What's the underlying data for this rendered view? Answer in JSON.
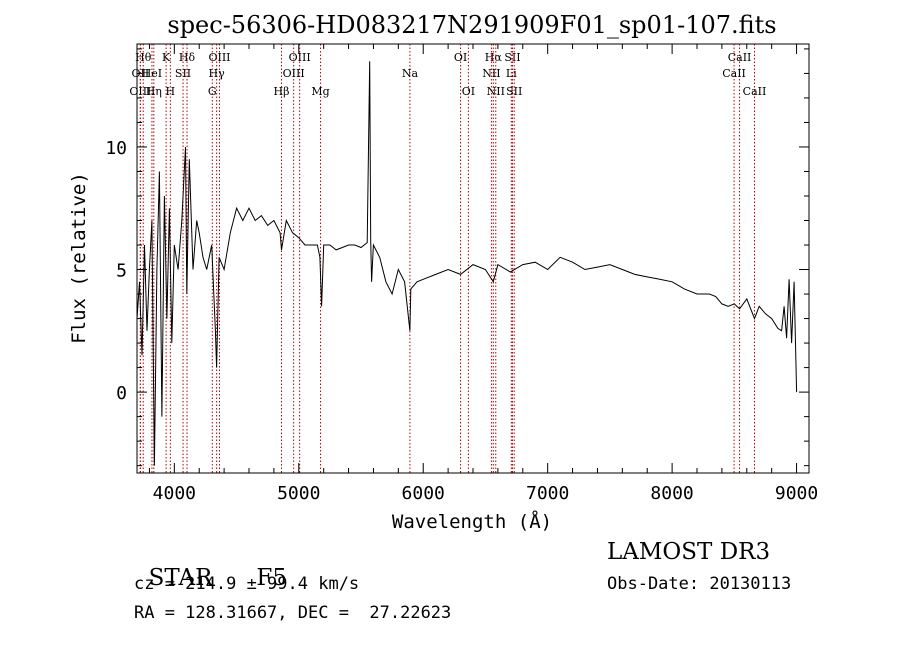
{
  "chart_data": {
    "type": "line",
    "title": "spec-56306-HD083217N291909F01_sp01-107.fits",
    "xlabel": "Wavelength (Å)",
    "ylabel": "Flux (relative)",
    "xlim": [
      3700,
      9100
    ],
    "ylim": [
      -3.3,
      14.2
    ],
    "xticks": [
      4000,
      5000,
      6000,
      7000,
      8000,
      9000
    ],
    "yticks": [
      0,
      5,
      10
    ],
    "grid": false,
    "series": [
      {
        "name": "spectrum",
        "x": [
          3700,
          3720,
          3740,
          3760,
          3780,
          3800,
          3820,
          3840,
          3860,
          3880,
          3900,
          3920,
          3940,
          3960,
          3980,
          4000,
          4030,
          4060,
          4090,
          4100,
          4120,
          4150,
          4180,
          4200,
          4230,
          4260,
          4300,
          4330,
          4340,
          4360,
          4400,
          4450,
          4500,
          4550,
          4600,
          4650,
          4700,
          4750,
          4800,
          4850,
          4861,
          4900,
          4950,
          5000,
          5050,
          5100,
          5150,
          5170,
          5183,
          5200,
          5250,
          5300,
          5350,
          5400,
          5450,
          5500,
          5550,
          5570,
          5578,
          5585,
          5600,
          5650,
          5700,
          5750,
          5800,
          5850,
          5893,
          5900,
          5950,
          6000,
          6100,
          6200,
          6300,
          6400,
          6500,
          6563,
          6600,
          6700,
          6800,
          6900,
          7000,
          7100,
          7200,
          7300,
          7400,
          7500,
          7600,
          7700,
          7800,
          7900,
          8000,
          8100,
          8200,
          8300,
          8350,
          8400,
          8450,
          8500,
          8542,
          8600,
          8662,
          8700,
          8750,
          8800,
          8850,
          8880,
          8900,
          8920,
          8940,
          8960,
          8980,
          9000
        ],
        "values": [
          3.0,
          4.5,
          1.5,
          6.0,
          2.5,
          5.0,
          7.0,
          -3.0,
          5.0,
          9.0,
          -1.0,
          8.0,
          3.0,
          7.5,
          2.0,
          6.0,
          5.0,
          7.0,
          10.0,
          4.0,
          9.5,
          5.0,
          7.0,
          6.5,
          5.5,
          5.0,
          6.0,
          2.5,
          1.0,
          5.5,
          5.0,
          6.5,
          7.5,
          7.0,
          7.5,
          7.0,
          7.2,
          6.8,
          7.0,
          6.5,
          5.8,
          7.0,
          6.5,
          6.3,
          6.0,
          6.0,
          6.0,
          5.5,
          3.5,
          6.0,
          6.0,
          5.8,
          5.9,
          6.0,
          6.0,
          5.9,
          6.1,
          13.5,
          6.2,
          4.5,
          6.0,
          5.5,
          4.5,
          4.0,
          5.0,
          4.5,
          2.5,
          4.2,
          4.5,
          4.6,
          4.8,
          5.0,
          4.8,
          5.2,
          5.0,
          4.5,
          5.2,
          4.9,
          5.2,
          5.3,
          5.0,
          5.5,
          5.3,
          5.0,
          5.1,
          5.2,
          5.0,
          4.8,
          4.7,
          4.6,
          4.5,
          4.2,
          4.0,
          4.0,
          3.9,
          3.6,
          3.5,
          3.6,
          3.4,
          3.8,
          3.0,
          3.5,
          3.2,
          3.0,
          2.6,
          2.5,
          3.5,
          2.2,
          4.6,
          2.0,
          4.5,
          0.0
        ]
      }
    ],
    "line_markers": [
      {
        "label": "OII",
        "x": 3727,
        "row": 2
      },
      {
        "label": "OIII",
        "x": 3727,
        "row": 3
      },
      {
        "label": "Hθ",
        "x": 3750,
        "row": 1
      },
      {
        "label": "Hη",
        "x": 3835,
        "row": 3
      },
      {
        "label": "HeI",
        "x": 3820,
        "row": 2
      },
      {
        "label": "K",
        "x": 3934,
        "row": 1
      },
      {
        "label": "H",
        "x": 3968,
        "row": 3
      },
      {
        "label": "SII",
        "x": 4070,
        "row": 2
      },
      {
        "label": "Hδ",
        "x": 4102,
        "row": 1
      },
      {
        "label": "OIII",
        "x": 4363,
        "row": 1
      },
      {
        "label": "Hγ",
        "x": 4340,
        "row": 2
      },
      {
        "label": "G",
        "x": 4305,
        "row": 3
      },
      {
        "label": "Hβ",
        "x": 4861,
        "row": 3
      },
      {
        "label": "OIII",
        "x": 5007,
        "row": 1
      },
      {
        "label": "OIII",
        "x": 4959,
        "row": 2
      },
      {
        "label": "Mg",
        "x": 5175,
        "row": 3
      },
      {
        "label": "Na",
        "x": 5893,
        "row": 2
      },
      {
        "label": "OI",
        "x": 6300,
        "row": 1
      },
      {
        "label": "OI",
        "x": 6363,
        "row": 3
      },
      {
        "label": "Hα",
        "x": 6563,
        "row": 1
      },
      {
        "label": "NII",
        "x": 6548,
        "row": 2
      },
      {
        "label": "NII",
        "x": 6583,
        "row": 3
      },
      {
        "label": "SII",
        "x": 6717,
        "row": 1
      },
      {
        "label": "Li",
        "x": 6708,
        "row": 2
      },
      {
        "label": "SII",
        "x": 6731,
        "row": 3
      },
      {
        "label": "CaII",
        "x": 8542,
        "row": 1
      },
      {
        "label": "CaII",
        "x": 8498,
        "row": 2
      },
      {
        "label": "CaII",
        "x": 8662,
        "row": 3
      }
    ]
  },
  "info": {
    "object_class": "STAR",
    "subclass": "F5",
    "cz": "cz = 214.9 ± 99.4 km/s",
    "coords": "RA = 128.31667, DEC =  27.22623",
    "survey": "LAMOST DR3",
    "obs_date": "Obs-Date: 20130113"
  },
  "colors": {
    "line": "#000000",
    "marker": "#b40000",
    "axis": "#000000"
  }
}
